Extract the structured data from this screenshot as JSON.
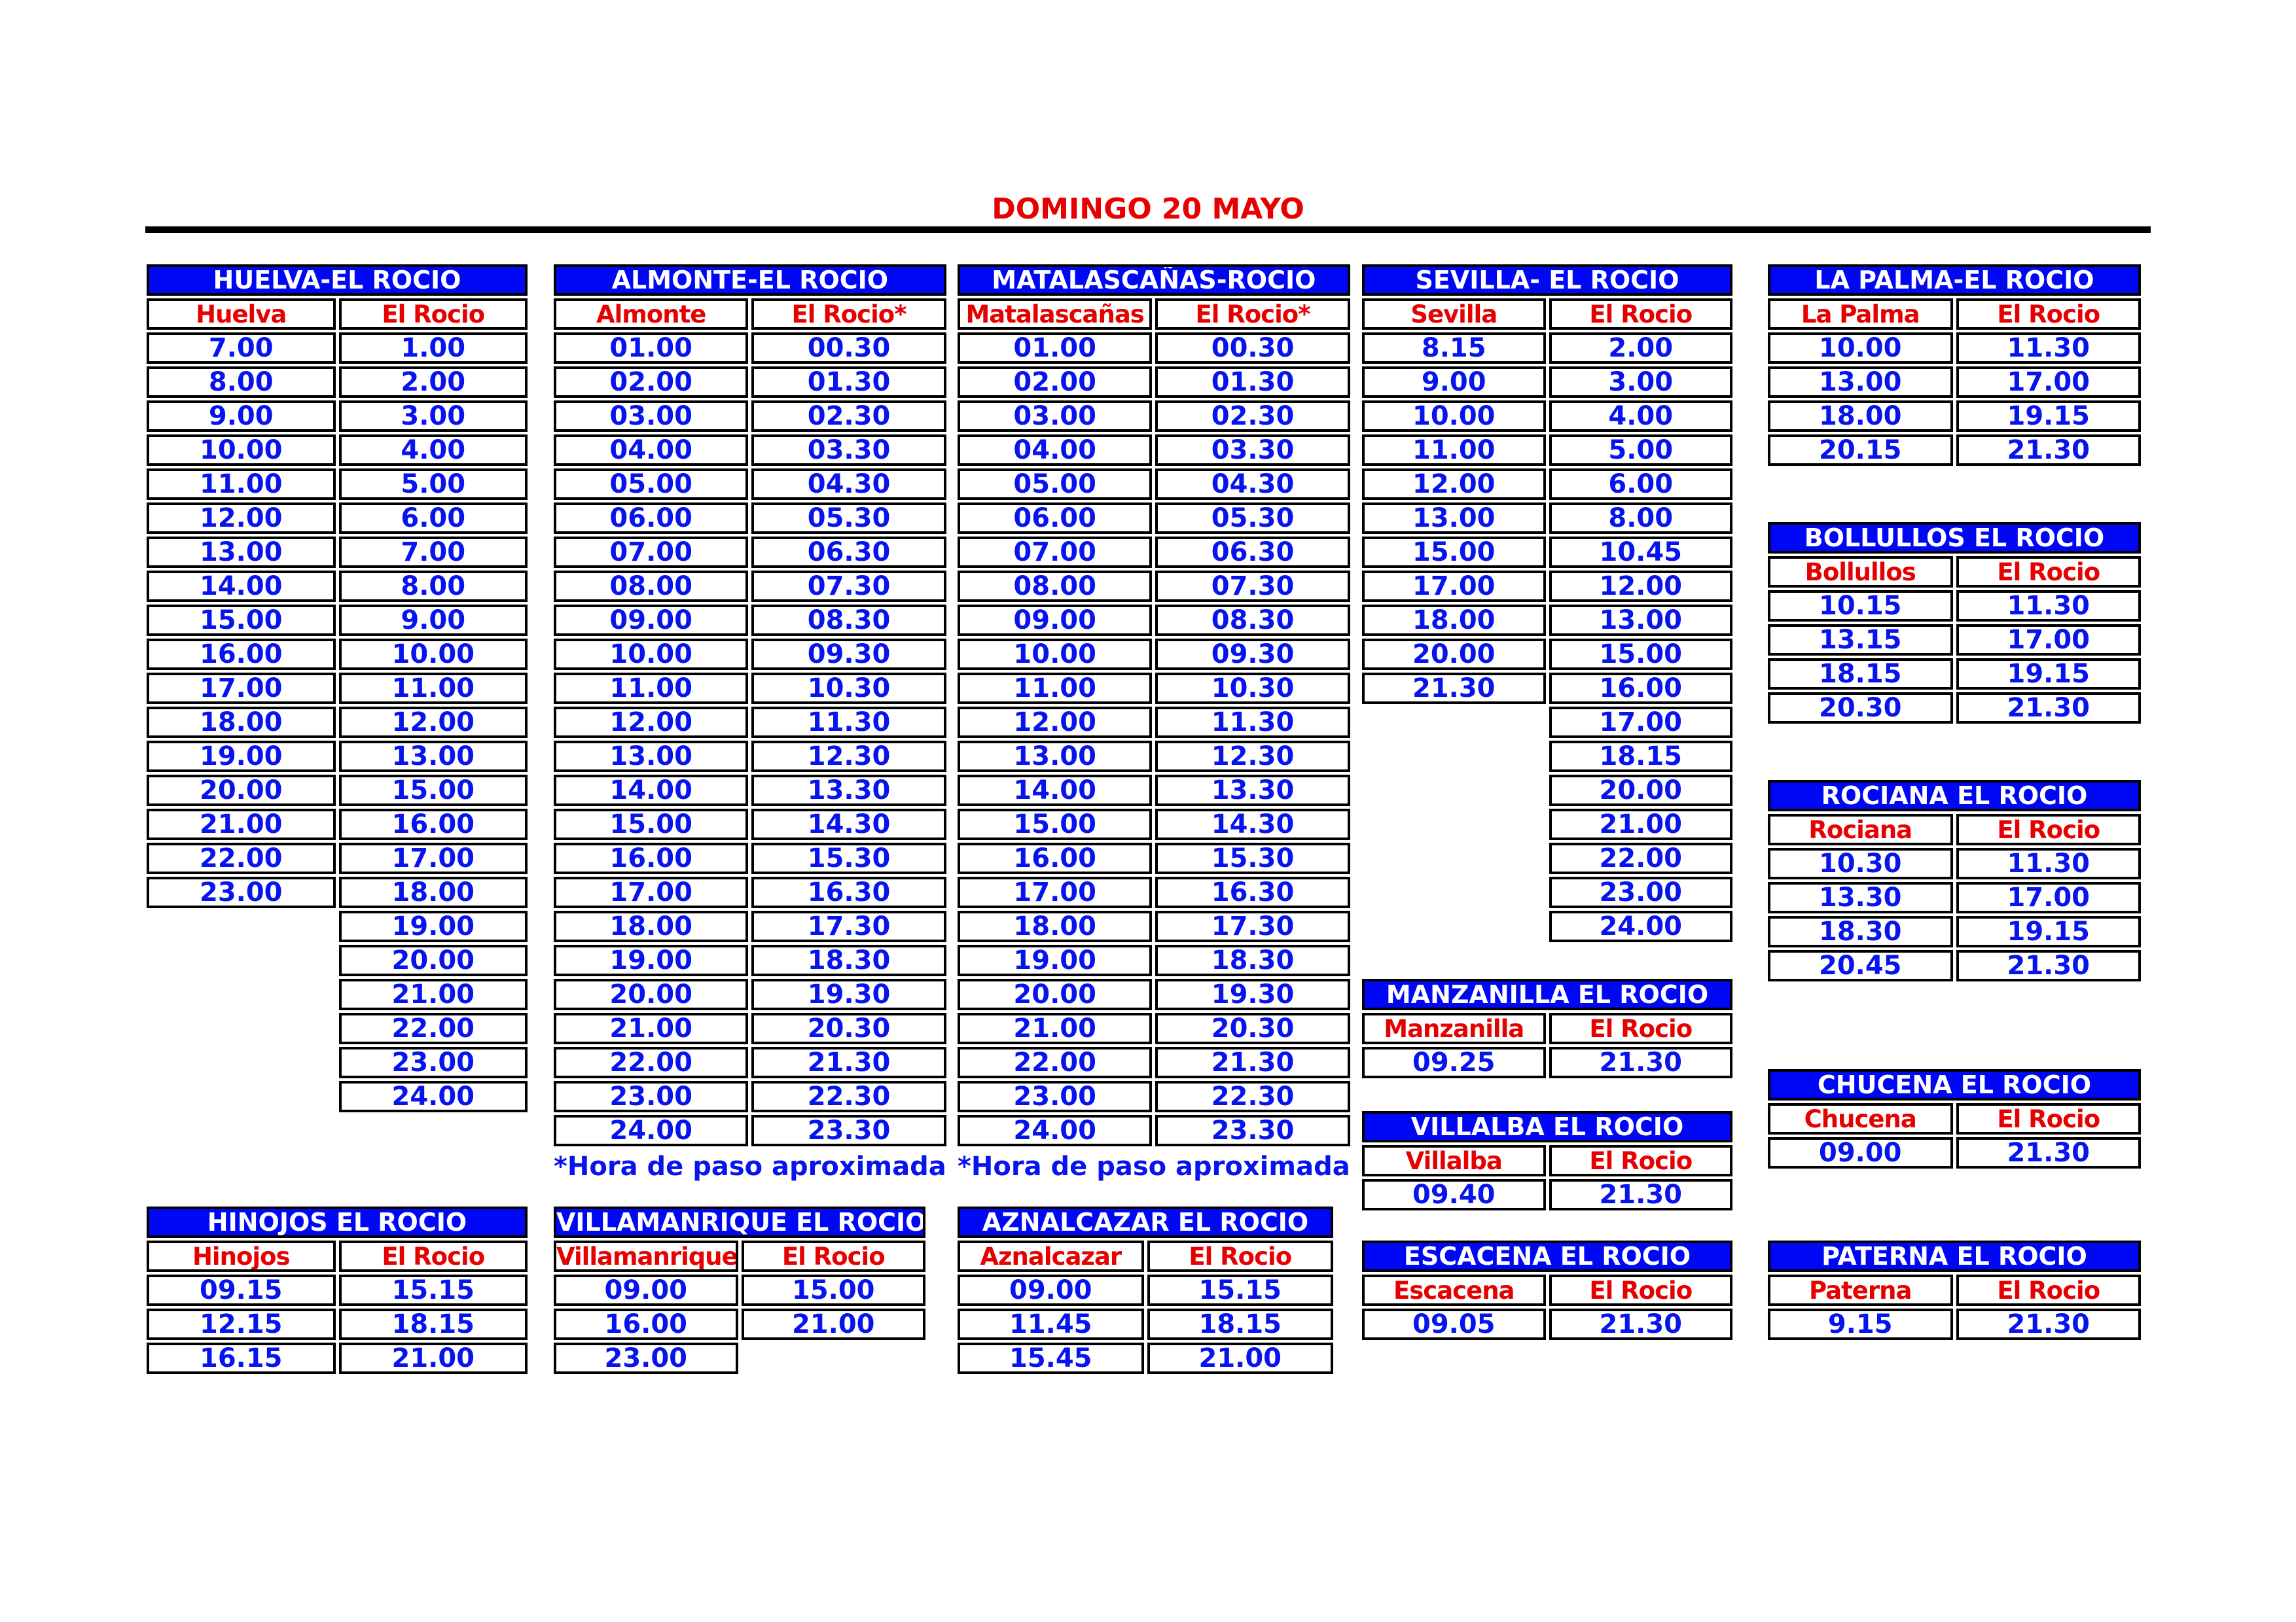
{
  "page": {
    "title": "DOMINGO 20 MAYO"
  },
  "tables": {
    "huelva": {
      "title": "HUELVA-EL ROCIO",
      "columns": [
        "Huelva",
        "El Rocio"
      ],
      "rows": [
        [
          "7.00",
          "1.00"
        ],
        [
          "8.00",
          "2.00"
        ],
        [
          "9.00",
          "3.00"
        ],
        [
          "10.00",
          "4.00"
        ],
        [
          "11.00",
          "5.00"
        ],
        [
          "12.00",
          "6.00"
        ],
        [
          "13.00",
          "7.00"
        ],
        [
          "14.00",
          "8.00"
        ],
        [
          "15.00",
          "9.00"
        ],
        [
          "16.00",
          "10.00"
        ],
        [
          "17.00",
          "11.00"
        ],
        [
          "18.00",
          "12.00"
        ],
        [
          "19.00",
          "13.00"
        ],
        [
          "20.00",
          "15.00"
        ],
        [
          "21.00",
          "16.00"
        ],
        [
          "22.00",
          "17.00"
        ],
        [
          "23.00",
          "18.00"
        ],
        [
          null,
          "19.00"
        ],
        [
          null,
          "20.00"
        ],
        [
          null,
          "21.00"
        ],
        [
          null,
          "22.00"
        ],
        [
          null,
          "23.00"
        ],
        [
          null,
          "24.00"
        ]
      ]
    },
    "almonte": {
      "title": "ALMONTE-EL ROCIO",
      "columns": [
        "Almonte",
        "El Rocio*"
      ],
      "rows": [
        [
          "01.00",
          "00.30"
        ],
        [
          "02.00",
          "01.30"
        ],
        [
          "03.00",
          "02.30"
        ],
        [
          "04.00",
          "03.30"
        ],
        [
          "05.00",
          "04.30"
        ],
        [
          "06.00",
          "05.30"
        ],
        [
          "07.00",
          "06.30"
        ],
        [
          "08.00",
          "07.30"
        ],
        [
          "09.00",
          "08.30"
        ],
        [
          "10.00",
          "09.30"
        ],
        [
          "11.00",
          "10.30"
        ],
        [
          "12.00",
          "11.30"
        ],
        [
          "13.00",
          "12.30"
        ],
        [
          "14.00",
          "13.30"
        ],
        [
          "15.00",
          "14.30"
        ],
        [
          "16.00",
          "15.30"
        ],
        [
          "17.00",
          "16.30"
        ],
        [
          "18.00",
          "17.30"
        ],
        [
          "19.00",
          "18.30"
        ],
        [
          "20.00",
          "19.30"
        ],
        [
          "21.00",
          "20.30"
        ],
        [
          "22.00",
          "21.30"
        ],
        [
          "23.00",
          "22.30"
        ],
        [
          "24.00",
          "23.30"
        ]
      ],
      "footnote": "*Hora de paso aproximada"
    },
    "matalascanas": {
      "title": "MATALASCAÑAS-ROCIO",
      "columns": [
        "Matalascañas",
        "El Rocio*"
      ],
      "rows": [
        [
          "01.00",
          "00.30"
        ],
        [
          "02.00",
          "01.30"
        ],
        [
          "03.00",
          "02.30"
        ],
        [
          "04.00",
          "03.30"
        ],
        [
          "05.00",
          "04.30"
        ],
        [
          "06.00",
          "05.30"
        ],
        [
          "07.00",
          "06.30"
        ],
        [
          "08.00",
          "07.30"
        ],
        [
          "09.00",
          "08.30"
        ],
        [
          "10.00",
          "09.30"
        ],
        [
          "11.00",
          "10.30"
        ],
        [
          "12.00",
          "11.30"
        ],
        [
          "13.00",
          "12.30"
        ],
        [
          "14.00",
          "13.30"
        ],
        [
          "15.00",
          "14.30"
        ],
        [
          "16.00",
          "15.30"
        ],
        [
          "17.00",
          "16.30"
        ],
        [
          "18.00",
          "17.30"
        ],
        [
          "19.00",
          "18.30"
        ],
        [
          "20.00",
          "19.30"
        ],
        [
          "21.00",
          "20.30"
        ],
        [
          "22.00",
          "21.30"
        ],
        [
          "23.00",
          "22.30"
        ],
        [
          "24.00",
          "23.30"
        ]
      ],
      "footnote": "*Hora de paso aproximada"
    },
    "sevilla": {
      "title": "SEVILLA- EL ROCIO",
      "columns": [
        "Sevilla",
        "El Rocio"
      ],
      "rows": [
        [
          "8.15",
          "2.00"
        ],
        [
          "9.00",
          "3.00"
        ],
        [
          "10.00",
          "4.00"
        ],
        [
          "11.00",
          "5.00"
        ],
        [
          "12.00",
          "6.00"
        ],
        [
          "13.00",
          "8.00"
        ],
        [
          "15.00",
          "10.45"
        ],
        [
          "17.00",
          "12.00"
        ],
        [
          "18.00",
          "13.00"
        ],
        [
          "20.00",
          "15.00"
        ],
        [
          "21.30",
          "16.00"
        ],
        [
          null,
          "17.00"
        ],
        [
          null,
          "18.15"
        ],
        [
          null,
          "20.00"
        ],
        [
          null,
          "21.00"
        ],
        [
          null,
          "22.00"
        ],
        [
          null,
          "23.00"
        ],
        [
          null,
          "24.00"
        ]
      ]
    },
    "lapalma": {
      "title": "LA PALMA-EL ROCIO",
      "columns": [
        "La Palma",
        "El Rocio"
      ],
      "rows": [
        [
          "10.00",
          "11.30"
        ],
        [
          "13.00",
          "17.00"
        ],
        [
          "18.00",
          "19.15"
        ],
        [
          "20.15",
          "21.30"
        ]
      ]
    },
    "bollullos": {
      "title": "BOLLULLOS EL ROCIO",
      "columns": [
        "Bollullos",
        "El Rocio"
      ],
      "rows": [
        [
          "10.15",
          "11.30"
        ],
        [
          "13.15",
          "17.00"
        ],
        [
          "18.15",
          "19.15"
        ],
        [
          "20.30",
          "21.30"
        ]
      ]
    },
    "rociana": {
      "title": "ROCIANA EL ROCIO",
      "columns": [
        "Rociana",
        "El Rocio"
      ],
      "rows": [
        [
          "10.30",
          "11.30"
        ],
        [
          "13.30",
          "17.00"
        ],
        [
          "18.30",
          "19.15"
        ],
        [
          "20.45",
          "21.30"
        ]
      ]
    },
    "manzanilla": {
      "title": "MANZANILLA EL ROCIO",
      "columns": [
        "Manzanilla",
        "El Rocio"
      ],
      "rows": [
        [
          "09.25",
          "21.30"
        ]
      ]
    },
    "villalba": {
      "title": "VILLALBA EL ROCIO",
      "columns": [
        "Villalba",
        "El Rocio"
      ],
      "rows": [
        [
          "09.40",
          "21.30"
        ]
      ]
    },
    "chucena": {
      "title": "CHUCENA EL ROCIO",
      "columns": [
        "Chucena",
        "El Rocio"
      ],
      "rows": [
        [
          "09.00",
          "21.30"
        ]
      ]
    },
    "escacena": {
      "title": "ESCACENA EL ROCIO",
      "columns": [
        "Escacena",
        "El Rocio"
      ],
      "rows": [
        [
          "09.05",
          "21.30"
        ]
      ]
    },
    "paterna": {
      "title": "PATERNA EL ROCIO",
      "columns": [
        "Paterna",
        "El Rocio"
      ],
      "rows": [
        [
          "9.15",
          "21.30"
        ]
      ]
    },
    "hinojos": {
      "title": "HINOJOS EL ROCIO",
      "columns": [
        "Hinojos",
        "El Rocio"
      ],
      "rows": [
        [
          "09.15",
          "15.15"
        ],
        [
          "12.15",
          "18.15"
        ],
        [
          "16.15",
          "21.00"
        ]
      ]
    },
    "villamanrique": {
      "title": "VILLAMANRIQUE EL ROCIO",
      "columns": [
        "Villamanrique",
        "El Rocio"
      ],
      "rows": [
        [
          "09.00",
          "15.00"
        ],
        [
          "16.00",
          "21.00"
        ],
        [
          "23.00",
          null
        ]
      ]
    },
    "aznalcazar": {
      "title": "AZNALCAZAR EL ROCIO",
      "columns": [
        "Aznalcazar",
        "El Rocio"
      ],
      "rows": [
        [
          "09.00",
          "15.15"
        ],
        [
          "11.45",
          "18.15"
        ],
        [
          "15.45",
          "21.00"
        ]
      ]
    }
  }
}
